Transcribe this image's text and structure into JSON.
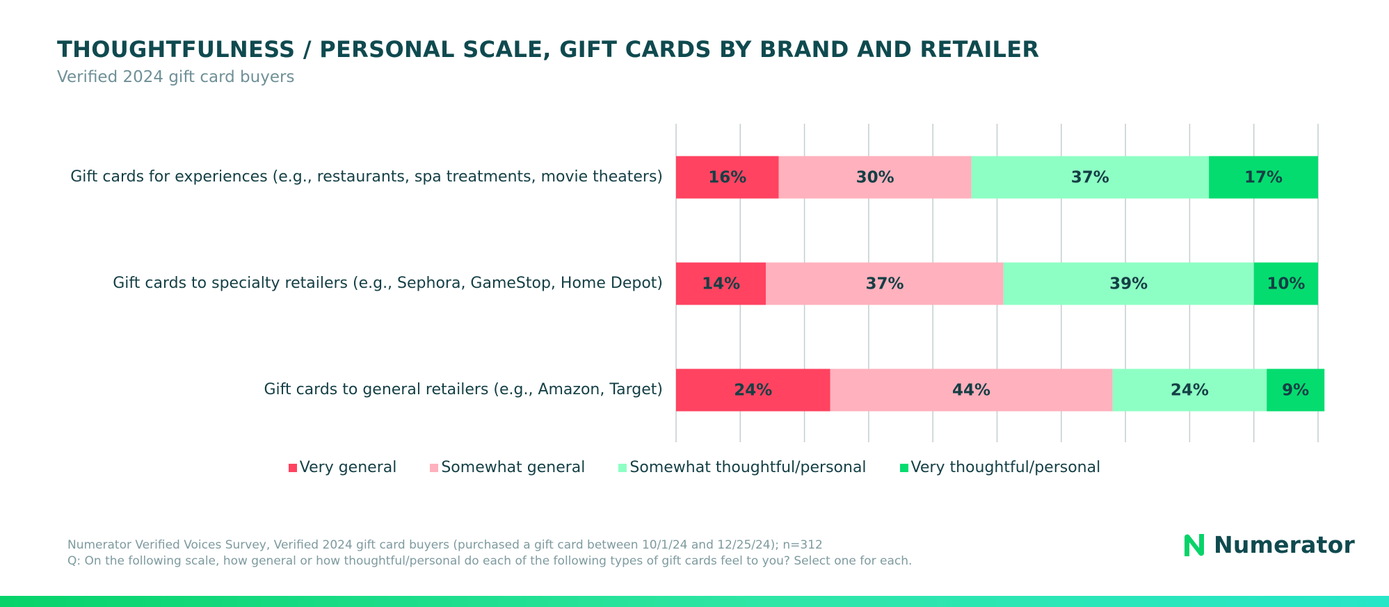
{
  "header": {
    "title": "THOUGHTFULNESS / PERSONAL SCALE, GIFT CARDS BY BRAND AND RETAILER",
    "subtitle": "Verified 2024 gift card buyers"
  },
  "chart_data": {
    "type": "bar",
    "orientation": "horizontal",
    "stacked": true,
    "title": "THOUGHTFULNESS / PERSONAL SCALE, GIFT CARDS BY BRAND AND RETAILER",
    "subtitle": "Verified 2024 gift card buyers",
    "categories": [
      "Gift cards for experiences (e.g., restaurants, spa treatments, movie theaters)",
      "Gift cards to specialty retailers (e.g., Sephora, GameStop, Home Depot)",
      "Gift cards to general retailers (e.g., Amazon, Target)"
    ],
    "series": [
      {
        "name": "Very general",
        "color": "#ff4361",
        "values": [
          16,
          14,
          24
        ]
      },
      {
        "name": "Somewhat general",
        "color": "#ffb1bd",
        "values": [
          30,
          37,
          44
        ]
      },
      {
        "name": "Somewhat thoughtful/personal",
        "color": "#8effc4",
        "values": [
          37,
          39,
          24
        ]
      },
      {
        "name": "Very thoughtful/personal",
        "color": "#05dc6f",
        "values": [
          17,
          10,
          9
        ]
      }
    ],
    "xlim": [
      0,
      100
    ],
    "grid": true,
    "legend_position": "bottom"
  },
  "footer": {
    "source": "Numerator Verified Voices Survey, Verified 2024 gift card buyers (purchased a gift card between 10/1/24 and 12/25/24); n=312",
    "question": "Q: On the following scale, how general or how thoughtful/personal do each of the following types of gift cards feel to you? Select one for each."
  },
  "brand": {
    "name": "Numerator",
    "icon": "numerator-logo-icon",
    "accent": "#07d36a"
  }
}
